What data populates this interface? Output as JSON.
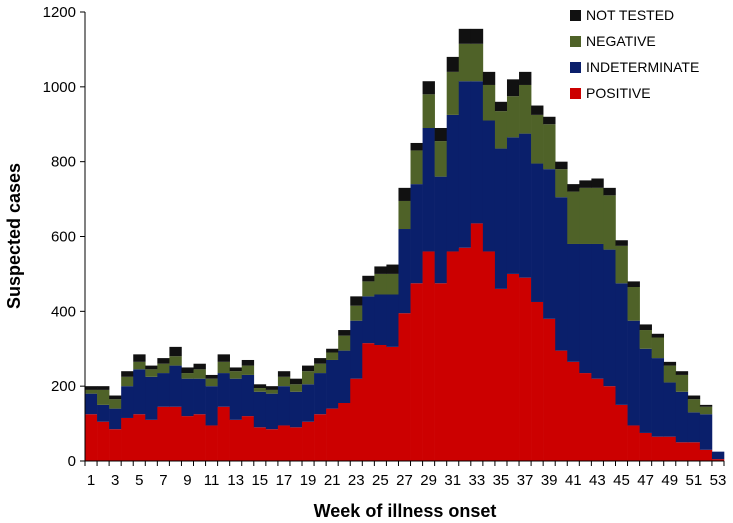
{
  "chart_data": {
    "type": "bar",
    "stacked": true,
    "xlabel": "Week of illness onset",
    "ylabel": "Suspected cases",
    "ylim": [
      0,
      1200
    ],
    "yticks": [
      0,
      200,
      400,
      600,
      800,
      1000,
      1200
    ],
    "x": [
      1,
      2,
      3,
      4,
      5,
      6,
      7,
      8,
      9,
      10,
      11,
      12,
      13,
      14,
      15,
      16,
      17,
      18,
      19,
      20,
      21,
      22,
      23,
      24,
      25,
      26,
      27,
      28,
      29,
      30,
      31,
      32,
      33,
      34,
      35,
      36,
      37,
      38,
      39,
      40,
      41,
      42,
      43,
      44,
      45,
      46,
      47,
      48,
      49,
      50,
      51,
      52,
      53
    ],
    "xtick_labels": [
      "1",
      "3",
      "5",
      "7",
      "9",
      "11",
      "13",
      "15",
      "17",
      "19",
      "21",
      "23",
      "25",
      "27",
      "29",
      "31",
      "33",
      "35",
      "37",
      "39",
      "41",
      "43",
      "45",
      "47",
      "49",
      "51",
      "53"
    ],
    "grid": false,
    "legend_position": "top-right",
    "series": [
      {
        "name": "POSITIVE",
        "color": "#cc0000",
        "values": [
          125,
          105,
          85,
          115,
          125,
          110,
          145,
          145,
          120,
          125,
          95,
          145,
          110,
          120,
          90,
          85,
          95,
          90,
          105,
          125,
          140,
          155,
          220,
          315,
          310,
          305,
          395,
          475,
          560,
          475,
          560,
          570,
          635,
          560,
          460,
          500,
          490,
          425,
          380,
          295,
          265,
          235,
          220,
          200,
          150,
          95,
          75,
          65,
          65,
          50,
          50,
          30,
          5
        ]
      },
      {
        "name": "INDETERMINATE",
        "color": "#0a1f6b",
        "values": [
          55,
          45,
          55,
          85,
          120,
          115,
          90,
          110,
          100,
          95,
          105,
          90,
          110,
          110,
          95,
          95,
          105,
          95,
          100,
          110,
          130,
          140,
          155,
          125,
          135,
          140,
          225,
          265,
          330,
          285,
          365,
          445,
          380,
          350,
          375,
          365,
          385,
          370,
          400,
          410,
          315,
          345,
          360,
          365,
          325,
          280,
          225,
          210,
          145,
          135,
          80,
          95,
          20
        ]
      },
      {
        "name": "NEGATIVE",
        "color": "#4f6228",
        "values": [
          10,
          40,
          25,
          25,
          20,
          20,
          25,
          25,
          15,
          25,
          20,
          30,
          20,
          25,
          10,
          10,
          25,
          20,
          35,
          25,
          20,
          40,
          40,
          40,
          55,
          55,
          75,
          90,
          90,
          95,
          115,
          100,
          100,
          95,
          100,
          110,
          130,
          130,
          120,
          75,
          140,
          150,
          150,
          145,
          100,
          90,
          50,
          55,
          45,
          45,
          35,
          20,
          0
        ]
      },
      {
        "name": "NOT TESTED",
        "color": "#111111",
        "values": [
          10,
          10,
          10,
          15,
          20,
          10,
          15,
          25,
          15,
          15,
          10,
          20,
          10,
          15,
          10,
          10,
          15,
          15,
          15,
          15,
          10,
          15,
          25,
          15,
          20,
          25,
          35,
          20,
          35,
          35,
          40,
          40,
          40,
          35,
          25,
          45,
          35,
          25,
          20,
          20,
          20,
          20,
          25,
          20,
          15,
          15,
          15,
          10,
          10,
          10,
          10,
          5,
          0
        ]
      }
    ]
  }
}
